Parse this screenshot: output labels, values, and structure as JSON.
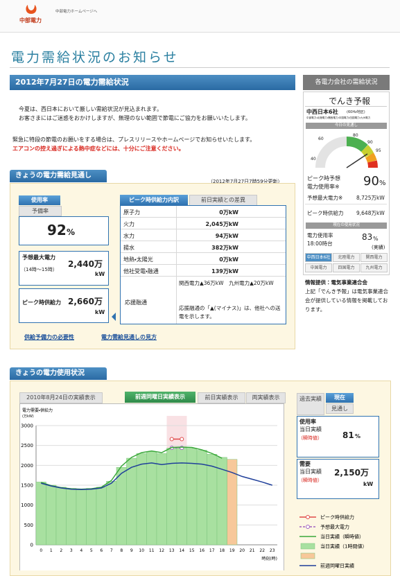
{
  "header": {
    "logo": "中部電力",
    "link": "中部電力ホームページへ"
  },
  "page_title": "電力需給状況のお知らせ",
  "date_heading": "2012年7月27日の電力需給状況",
  "notice": {
    "lines": [
      "今夏は、西日本において厳しい需給状況が見込まれます。",
      "お客さまにはご迷惑をおかけしますが、無理のない範囲で節電にご協力をお願いいたします。"
    ],
    "info": "緊急に特段の節電のお願いをする場合は、プレスリリースやホームページでお知らせいたします。",
    "warning": "エアコンの控え過ぎによる熱中症などには、十分にご注意ください。"
  },
  "outlook": {
    "heading": "きょうの電力需給見通し",
    "updated": "（2012年7月27日7時59分更新）",
    "tabs": [
      "使用率",
      "予備率"
    ],
    "rate": "92",
    "rate_unit": "%",
    "max_demand": {
      "label": "予想最大電力",
      "period": "（14時～15時）",
      "value": "2,440万",
      "unit": "kW"
    },
    "peak_supply": {
      "label": "ピーク時供給力",
      "value": "2,660万",
      "unit": "kW"
    },
    "table_tabs": [
      "ピーク時供給力内訳",
      "前日実績との差異"
    ],
    "rows": [
      [
        "原子力",
        "0万kW"
      ],
      [
        "火力",
        "2,045万kW"
      ],
      [
        "水力",
        "94万kW"
      ],
      [
        "揚水",
        "382万kW"
      ],
      [
        "地熱・太陽光",
        "0万kW"
      ],
      [
        "他社受電・融通",
        "139万kW"
      ]
    ],
    "support": {
      "label": "応援融通",
      "detail": "関西電力▲36万kW　九州電力▲20万kW",
      "note": "応援融通の「▲(マイナス)」は、他社への送電を示します。"
    },
    "links": [
      "供給予備力の必要性",
      "電力需給見通しの見方"
    ]
  },
  "sidebar": {
    "heading": "各電力会社の需給状況",
    "title": "でんき予報",
    "region": "中西日本6社",
    "region_note": "(60Hz地区)",
    "companies": "中部電力・北陸電力・関西電力・中国電力・四国電力・九州電力",
    "today": "今日の見通し",
    "gauge_labels": [
      "40",
      "60",
      "80",
      "90",
      "95"
    ],
    "peak_rate_label": [
      "ピーク時予想",
      "電力使用率※"
    ],
    "peak_rate": "90",
    "peak_rate_unit": "%",
    "max_demand_label": "予想最大電力※",
    "max_demand": "8,725万kW",
    "supply_label": "ピーク時供給力",
    "supply": "9,648万kW",
    "current": "現在の使用状況",
    "usage_label": "電力使用率",
    "usage_time": "18:00時台",
    "usage_rate": "83",
    "usage_unit": "%",
    "usage_note": "(実績)",
    "buttons": [
      "中西日本6社",
      "北陸電力",
      "関西電力",
      "中国電力",
      "四国電力",
      "九州電力"
    ],
    "source": "情報提供：電気事業連合会",
    "source_note": "上記「でんき予報」は電気事業連合会が提供している情報を掲載しております。"
  },
  "usage": {
    "heading": "きょうの電力使用状況",
    "tabs": [
      "2010年8月24日の実績表示",
      "前週同曜日実績表示",
      "前日実績表示",
      "両実績表示"
    ],
    "side_tabs": [
      "過去実績",
      "現在",
      "見通し"
    ],
    "rate": {
      "label": "使用率",
      "sub": "当日実績",
      "note": "（瞬時値）",
      "value": "81",
      "unit": "%"
    },
    "demand": {
      "label": "需要",
      "sub": "当日実績",
      "note": "（瞬時値）",
      "value": "2,150万",
      "unit": "kW"
    }
  },
  "chart_data": {
    "type": "bar",
    "ylabel": "電力需要・供給力",
    "yunit": "(万kW)",
    "xlabel": "時刻(時)",
    "categories": [
      "0",
      "1",
      "2",
      "3",
      "4",
      "5",
      "6",
      "7",
      "8",
      "9",
      "10",
      "11",
      "12",
      "13",
      "14",
      "15",
      "16",
      "17",
      "18",
      "19",
      "20",
      "21",
      "22",
      "23"
    ],
    "ylim": [
      0,
      3000
    ],
    "yticks": [
      0,
      500,
      1000,
      1500,
      2000,
      2500,
      3000
    ],
    "grid": true,
    "series": [
      {
        "name": "ピーク時供給力",
        "type": "line",
        "markers": true,
        "color": "#e04848",
        "values": [
          null,
          null,
          null,
          null,
          null,
          null,
          null,
          null,
          null,
          null,
          null,
          null,
          null,
          2660,
          2660,
          null,
          null,
          null,
          null,
          null,
          null,
          null,
          null,
          null
        ]
      },
      {
        "name": "予想最大電力",
        "type": "line",
        "markers": true,
        "dashed": true,
        "color": "#a060c0",
        "values": [
          null,
          null,
          null,
          null,
          null,
          null,
          null,
          null,
          null,
          null,
          null,
          null,
          null,
          2440,
          2440,
          null,
          null,
          null,
          null,
          null,
          null,
          null,
          null,
          null
        ]
      },
      {
        "name": "当日実績（瞬時値）",
        "type": "line",
        "color": "#3aa83a",
        "values": [
          1570,
          1490,
          1440,
          1410,
          1400,
          1410,
          1450,
          1620,
          1980,
          2200,
          2320,
          2360,
          2320,
          2450,
          2460,
          2450,
          2390,
          2300,
          2180,
          null,
          null,
          null,
          null,
          null
        ]
      },
      {
        "name": "当日実績（1時間値）",
        "type": "bar",
        "color": "#a8e0a0",
        "values": [
          1580,
          1500,
          1450,
          1420,
          1400,
          1420,
          1450,
          1600,
          1950,
          2180,
          2300,
          2350,
          2300,
          2430,
          2440,
          2430,
          2380,
          2280,
          2200,
          null,
          null,
          null,
          null,
          null
        ]
      },
      {
        "type": "bar",
        "color": "#f7c89a",
        "values": [
          null,
          null,
          null,
          null,
          null,
          null,
          null,
          null,
          null,
          null,
          null,
          null,
          null,
          null,
          null,
          null,
          null,
          null,
          null,
          2150,
          null,
          null,
          null,
          null
        ]
      },
      {
        "name": "前週同曜日実績",
        "type": "line",
        "color": "#1f3f9a",
        "values": [
          1550,
          1480,
          1430,
          1400,
          1390,
          1400,
          1430,
          1550,
          1800,
          1950,
          2030,
          2060,
          2020,
          2050,
          2060,
          2050,
          2030,
          1980,
          1900,
          1820,
          1720,
          1650,
          1580,
          1500
        ]
      }
    ]
  }
}
